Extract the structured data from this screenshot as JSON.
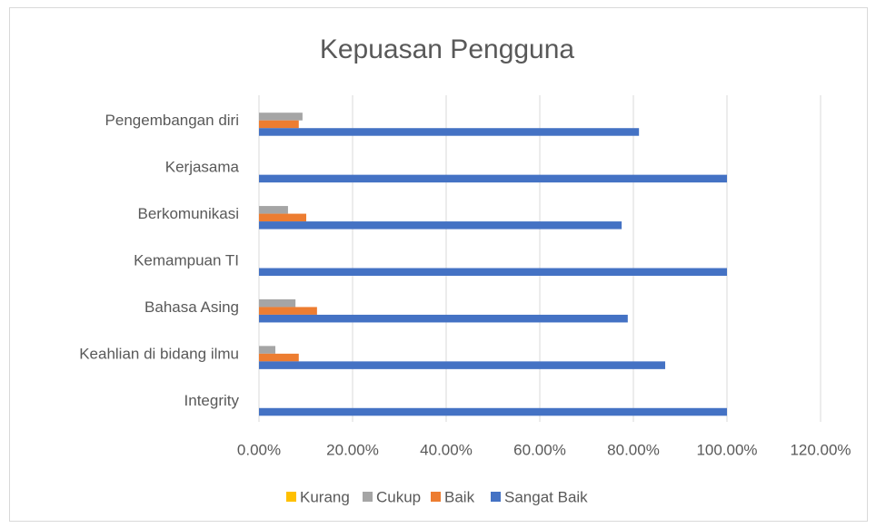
{
  "chart_data": {
    "type": "hbar",
    "title": "Kepuasan Pengguna",
    "categories": [
      "Integrity",
      "Keahlian di bidang ilmu",
      "Bahasa Asing",
      "Kemampuan TI",
      "Berkomunikasi",
      "Kerjasama",
      "Pengembangan diri"
    ],
    "series": [
      {
        "name": "Kurang",
        "color": "#ffc000",
        "values": [
          0,
          0,
          0,
          0,
          0,
          0,
          0
        ]
      },
      {
        "name": "Cukup",
        "color": "#a5a5a5",
        "values": [
          0,
          3.5,
          7.8,
          0,
          6.2,
          0,
          9.3
        ]
      },
      {
        "name": "Baik",
        "color": "#ed7d31",
        "values": [
          0,
          8.5,
          12.4,
          0,
          10.1,
          0,
          8.5
        ]
      },
      {
        "name": "Sangat Baik",
        "color": "#4472c4",
        "values": [
          100,
          86.8,
          78.8,
          100,
          77.5,
          100,
          81.2
        ]
      }
    ],
    "xlim": [
      0,
      120
    ],
    "xticks": [
      {
        "value": 0,
        "label": "0.00%"
      },
      {
        "value": 20,
        "label": "20.00%"
      },
      {
        "value": 40,
        "label": "40.00%"
      },
      {
        "value": 60,
        "label": "60.00%"
      },
      {
        "value": 80,
        "label": "80.00%"
      },
      {
        "value": 100,
        "label": "100.00%"
      },
      {
        "value": 120,
        "label": "120.00%"
      }
    ],
    "grid": true,
    "legend": "bottom"
  }
}
